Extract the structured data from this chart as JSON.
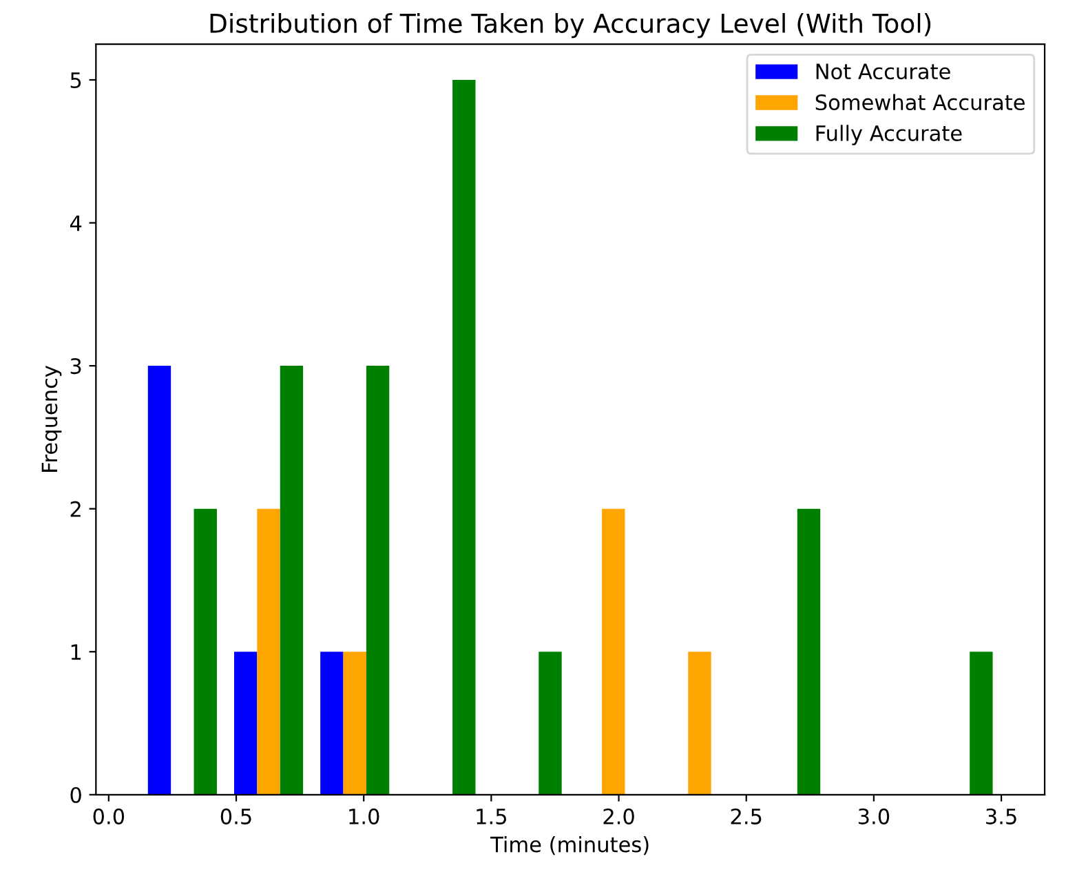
{
  "chart_data": {
    "type": "histogram",
    "title": "Distribution of Time Taken by Accuracy Level (With Tool)",
    "xlabel": "Time (minutes)",
    "ylabel": "Frequency",
    "bins": [
      0.12,
      0.458,
      0.796,
      1.134,
      1.472,
      1.81,
      2.148,
      2.486,
      2.824,
      3.162,
      3.5
    ],
    "series": [
      {
        "name": "Not Accurate",
        "color": "#0000ff",
        "values": [
          3,
          1,
          1,
          0,
          0,
          0,
          0,
          0,
          0,
          0
        ]
      },
      {
        "name": "Somewhat Accurate",
        "color": "#ffa500",
        "values": [
          0,
          2,
          1,
          0,
          0,
          2,
          1,
          0,
          0,
          0
        ]
      },
      {
        "name": "Fully Accurate",
        "color": "#008000",
        "values": [
          2,
          3,
          3,
          5,
          1,
          0,
          0,
          2,
          0,
          1
        ]
      }
    ],
    "xlim": [
      -0.05,
      3.67
    ],
    "ylim": [
      0,
      5.25
    ],
    "xticks": [
      {
        "value": 0,
        "label": "0.0"
      },
      0.5,
      {
        "value": 1,
        "label": "1.0"
      },
      1.5,
      {
        "value": 2,
        "label": "2.0"
      },
      2.5,
      {
        "value": 3,
        "label": "3.0"
      },
      3.5
    ],
    "yticks": [
      0,
      1,
      2,
      3,
      4,
      5
    ],
    "legend": "top right",
    "grid": false
  }
}
